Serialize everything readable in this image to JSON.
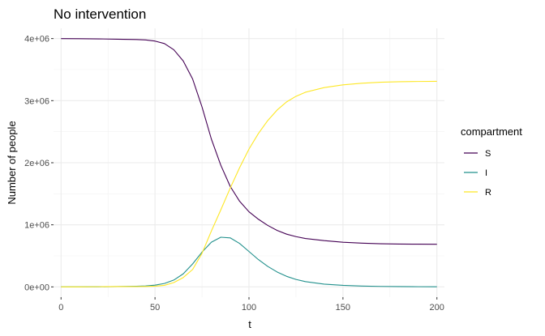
{
  "chart_data": {
    "type": "line",
    "title": "No intervention",
    "xlabel": "t",
    "ylabel": "Number of people",
    "xlim": [
      -4,
      204
    ],
    "ylim": [
      -165000,
      4165000
    ],
    "x_ticks": [
      0,
      50,
      100,
      150,
      200
    ],
    "x_tick_labels": [
      "0",
      "50",
      "100",
      "150",
      "200"
    ],
    "y_ticks": [
      0,
      1000000,
      2000000,
      3000000,
      4000000
    ],
    "y_tick_labels": [
      "0e+00",
      "1e+06",
      "2e+06",
      "3e+06",
      "4e+06"
    ],
    "grid": true,
    "legend": {
      "title": "compartment",
      "position": "right"
    },
    "x": [
      0,
      10,
      20,
      30,
      40,
      45,
      50,
      55,
      60,
      65,
      70,
      75,
      80,
      85,
      90,
      95,
      100,
      105,
      110,
      115,
      120,
      125,
      130,
      140,
      150,
      160,
      170,
      180,
      190,
      200
    ],
    "series": [
      {
        "name": "S",
        "color": "#440154",
        "values": [
          4000000,
          3998000,
          3995000,
          3990000,
          3985000,
          3978000,
          3960000,
          3920000,
          3820000,
          3640000,
          3350000,
          2900000,
          2380000,
          1960000,
          1620000,
          1380000,
          1210000,
          1090000,
          990000,
          910000,
          850000,
          810000,
          780000,
          745000,
          720000,
          705000,
          695000,
          690000,
          688000,
          687000
        ]
      },
      {
        "name": "I",
        "color": "#21908C",
        "values": [
          0,
          1000,
          2000,
          5000,
          10000,
          15000,
          28000,
          55000,
          110000,
          210000,
          370000,
          560000,
          720000,
          800000,
          790000,
          700000,
          570000,
          440000,
          330000,
          240000,
          170000,
          120000,
          85000,
          45000,
          25000,
          14000,
          8000,
          5000,
          3000,
          2000
        ]
      },
      {
        "name": "R",
        "color": "#FDE725",
        "values": [
          0,
          1000,
          3000,
          5000,
          5000,
          7000,
          12000,
          25000,
          70000,
          150000,
          280000,
          540000,
          900000,
          1240000,
          1590000,
          1920000,
          2220000,
          2470000,
          2680000,
          2850000,
          2980000,
          3070000,
          3135000,
          3210000,
          3255000,
          3280000,
          3297000,
          3305000,
          3309000,
          3311000
        ]
      }
    ]
  }
}
